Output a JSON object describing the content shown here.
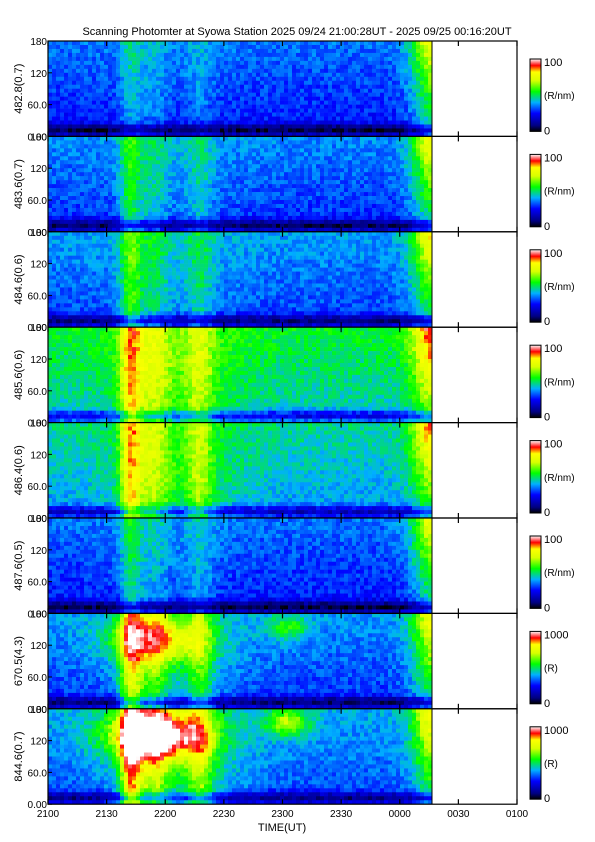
{
  "chart_data": {
    "type": "heatmap",
    "title": "Scanning Photomter at Syowa Station  2025 09/24 21:00:28UT - 2025 09/25 00:16:20UT",
    "xlabel": "TIME(UT)",
    "x_ticks": [
      "2100",
      "2130",
      "2200",
      "2230",
      "2300",
      "2330",
      "0000",
      "0030",
      "0100"
    ],
    "y_ticks": [
      "0.00",
      "60.0",
      "120",
      "180"
    ],
    "ylim": [
      0,
      180
    ],
    "data_end_label": "00:16:20UT",
    "panels": [
      {
        "ylabel": "482.8(0.7)",
        "cbar_max": "100",
        "cbar_min": "0",
        "unit": "(R/nm)",
        "base": 0.3,
        "event": 0.2,
        "greens": 0.05,
        "sat": 0.0
      },
      {
        "ylabel": "483.6(0.7)",
        "cbar_max": "100",
        "cbar_min": "0",
        "unit": "(R/nm)",
        "base": 0.32,
        "event": 0.35,
        "greens": 0.1,
        "sat": 0.0
      },
      {
        "ylabel": "484.6(0.6)",
        "cbar_max": "100",
        "cbar_min": "0",
        "unit": "(R/nm)",
        "base": 0.34,
        "event": 0.4,
        "greens": 0.12,
        "sat": 0.0
      },
      {
        "ylabel": "485.6(0.6)",
        "cbar_max": "100",
        "cbar_min": "0",
        "unit": "(R/nm)",
        "base": 0.48,
        "event": 0.55,
        "greens": 0.3,
        "sat": 0.0
      },
      {
        "ylabel": "486.4(0.6)",
        "cbar_max": "100",
        "cbar_min": "0",
        "unit": "(R/nm)",
        "base": 0.42,
        "event": 0.6,
        "greens": 0.35,
        "sat": 0.0
      },
      {
        "ylabel": "487.6(0.5)",
        "cbar_max": "100",
        "cbar_min": "0",
        "unit": "(R/nm)",
        "base": 0.3,
        "event": 0.3,
        "greens": 0.08,
        "sat": 0.0
      },
      {
        "ylabel": "670.5(4.3)",
        "cbar_max": "1000",
        "cbar_min": "0",
        "unit": "(R)",
        "base": 0.33,
        "event": 0.65,
        "greens": 0.25,
        "sat": 0.65
      },
      {
        "ylabel": "844.6(0.7)",
        "cbar_max": "1000",
        "cbar_min": "0",
        "unit": "(R)",
        "base": 0.35,
        "event": 0.75,
        "greens": 0.45,
        "sat": 1.0
      }
    ]
  }
}
